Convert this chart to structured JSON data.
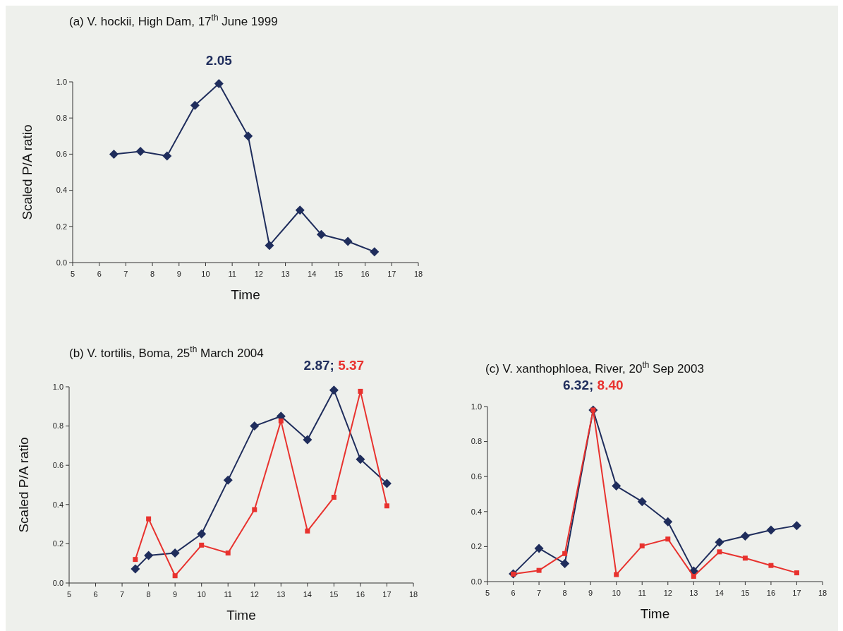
{
  "chart_data": [
    {
      "type": "line",
      "title": "(a) V. hockii, High Dam, 17$^{th}$ June 1999",
      "xlabel": "Time",
      "ylabel": "Scaled P/A ratio",
      "xlim": [
        5,
        18
      ],
      "xticks": [
        5,
        6,
        7,
        8,
        9,
        10,
        11,
        12,
        13,
        14,
        15,
        16,
        17,
        18
      ],
      "ylim": [
        0,
        1
      ],
      "yticks": [
        {
          "value": 0,
          "label": "0.0"
        },
        {
          "value": 0.2,
          "label": "0.2"
        },
        {
          "value": 0.4,
          "label": "0.4"
        },
        {
          "value": 0.6,
          "label": "0.6"
        },
        {
          "value": 0.8,
          "label": "0.8"
        },
        {
          "value": 1,
          "label": "1.0"
        }
      ],
      "annotations": [
        "2.05"
      ],
      "series": [
        {
          "color": "#1f2d5c",
          "marker": "diamond",
          "x": [
            6.55,
            7.55,
            8.55,
            9.6,
            10.5,
            11.6,
            12.4,
            13.55,
            14.35,
            15.35,
            16.35
          ],
          "values": [
            0.6,
            0.615,
            0.59,
            0.87,
            0.99,
            0.7,
            0.095,
            0.29,
            0.155,
            0.117,
            0.06
          ]
        }
      ]
    },
    {
      "type": "line",
      "title": "(b) V. tortilis, Boma, 25$^{th}$ March 2004",
      "xlabel": "Time",
      "ylabel": "Scaled P/A ratio",
      "xlim": [
        5,
        18
      ],
      "xticks": [
        5,
        6,
        7,
        8,
        9,
        10,
        11,
        12,
        13,
        14,
        15,
        16,
        17,
        18
      ],
      "ylim": [
        0,
        1
      ],
      "yticks": [
        {
          "value": 0,
          "label": "0.0"
        },
        {
          "value": 0.2,
          "label": "0.2"
        },
        {
          "value": 0.4,
          "label": "0.4"
        },
        {
          "value": 0.6,
          "label": "0.6"
        },
        {
          "value": 0.8,
          "label": "0.8"
        },
        {
          "value": 1,
          "label": "1.0"
        }
      ],
      "annotations": [
        "2.87;",
        "5.37"
      ],
      "series": [
        {
          "color": "#1f2d5c",
          "marker": "diamond",
          "x": [
            7.5,
            8,
            9,
            10,
            11,
            12,
            13,
            14,
            15,
            16,
            17
          ],
          "values": [
            0.072,
            0.14,
            0.153,
            0.25,
            0.524,
            0.8,
            0.85,
            0.73,
            0.983,
            0.63,
            0.507
          ]
        },
        {
          "color": "#e8322e",
          "marker": "square",
          "x": [
            7.5,
            8,
            9,
            10,
            11,
            12,
            13,
            14,
            15,
            16,
            17
          ],
          "values": [
            0.12,
            0.327,
            0.037,
            0.193,
            0.153,
            0.374,
            0.826,
            0.265,
            0.437,
            0.977,
            0.393
          ]
        }
      ]
    },
    {
      "type": "line",
      "title": "(c) V. xanthophloea, River, 20$^{th}$ Sep 2003",
      "xlabel": "Time",
      "xlim": [
        5,
        18
      ],
      "xticks": [
        5,
        6,
        7,
        8,
        9,
        10,
        11,
        12,
        13,
        14,
        15,
        16,
        17,
        18
      ],
      "ylim": [
        0,
        1
      ],
      "yticks": [
        {
          "value": 0,
          "label": "0.0"
        },
        {
          "value": 0.2,
          "label": "0.2"
        },
        {
          "value": 0.4,
          "label": "0.4"
        },
        {
          "value": 0.6,
          "label": "0.6"
        },
        {
          "value": 0.8,
          "label": "0.8"
        },
        {
          "value": 1,
          "label": "1.0"
        }
      ],
      "annotations": [
        "6.32;",
        "8.40"
      ],
      "series": [
        {
          "color": "#1f2d5c",
          "marker": "diamond",
          "x": [
            6,
            7,
            8,
            9.1,
            10,
            11,
            12,
            13,
            14,
            15,
            16,
            17
          ],
          "values": [
            0.044,
            0.19,
            0.103,
            0.98,
            0.546,
            0.457,
            0.342,
            0.06,
            0.225,
            0.26,
            0.294,
            0.32
          ]
        },
        {
          "color": "#e8322e",
          "marker": "square",
          "x": [
            6,
            7,
            8,
            9.1,
            10,
            11,
            12,
            13,
            14,
            15,
            16,
            17
          ],
          "values": [
            0.043,
            0.064,
            0.16,
            0.98,
            0.04,
            0.204,
            0.243,
            0.03,
            0.17,
            0.134,
            0.092,
            0.05
          ]
        }
      ]
    }
  ]
}
